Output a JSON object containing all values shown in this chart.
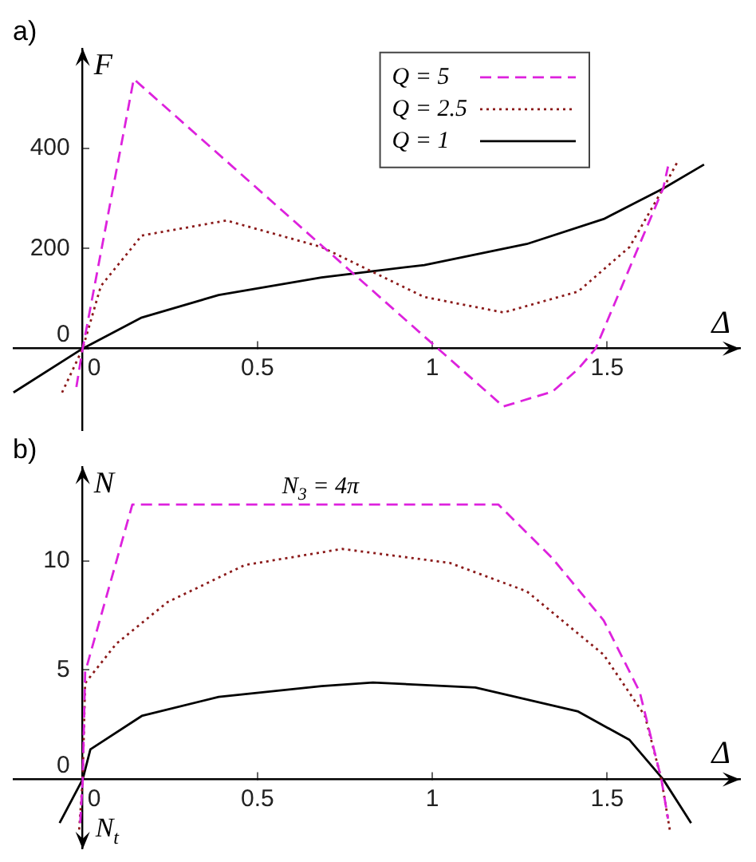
{
  "chart_data": [
    {
      "type": "line",
      "title": "a)",
      "xlabel": "Δ",
      "ylabel": "F",
      "xlim": [
        -0.2,
        1.88
      ],
      "ylim": [
        -165,
        600
      ],
      "xticks": [
        0,
        0.5,
        1,
        1.5
      ],
      "yticks": [
        0,
        200,
        400
      ],
      "grid": false,
      "legend": "top right",
      "series": [
        {
          "name": "Q = 5",
          "color": "#dd22dd",
          "line_style": "dashed",
          "x": [
            -0.018,
            0,
            0.146,
            1.203,
            1.344,
            1.417,
            1.467,
            1.66,
            1.674
          ],
          "values": [
            -77,
            0,
            539,
            -116,
            -86,
            -41,
            0,
            320,
            364
          ]
        },
        {
          "name": "Q = 2.5",
          "color": "#8b1a1a",
          "line_style": "dotted",
          "x": [
            -0.059,
            0,
            0.052,
            0.169,
            0.411,
            0.683,
            0.977,
            1.204,
            1.417,
            1.564,
            1.66,
            1.7
          ],
          "values": [
            -88,
            0,
            125,
            226,
            256,
            203,
            103,
            72,
            114,
            203,
            320,
            372
          ]
        },
        {
          "name": "Q = 1",
          "color": "#000000",
          "line_style": "solid",
          "x": [
            -0.198,
            0,
            0.169,
            0.389,
            0.683,
            0.977,
            1.27,
            1.49,
            1.66,
            1.777
          ],
          "values": [
            -88,
            0,
            62,
            107,
            142,
            167,
            209,
            259,
            320,
            368
          ]
        }
      ]
    },
    {
      "type": "line",
      "title": "b)",
      "xlabel": "Δ",
      "ylabel": "N",
      "xlim": [
        -0.2,
        1.88
      ],
      "ylim": [
        -3.2,
        14.3
      ],
      "xticks": [
        0,
        0.5,
        1,
        1.5
      ],
      "yticks": [
        0,
        5,
        10
      ],
      "grid": false,
      "annotations": [
        {
          "text": "N$_{3}$ = 4π",
          "x": 0.68,
          "y": 12.57
        },
        "N$_{t}$"
      ],
      "series": [
        {
          "color": "#dd22dd",
          "line_style": "dashed",
          "x": [
            -0.007,
            0,
            0.007,
            0.142,
            1.189,
            1.344,
            1.49,
            1.593,
            1.655,
            1.674
          ],
          "values": [
            -2,
            0,
            4.9,
            12.57,
            12.57,
            10.1,
            7.27,
            4,
            0,
            -1.8
          ]
        },
        {
          "color": "#8b1a1a",
          "line_style": "dotted",
          "x": [
            -0.01,
            0,
            0.007,
            0.096,
            0.242,
            0.463,
            0.742,
            1.05,
            1.27,
            1.49,
            1.608,
            1.655,
            1.68
          ],
          "values": [
            -2.3,
            0,
            4.4,
            6.2,
            8.1,
            9.8,
            10.54,
            9.9,
            8.6,
            5.7,
            2.9,
            0,
            -2.4
          ]
        },
        {
          "color": "#000000",
          "line_style": "solid",
          "x": [
            -0.066,
            0,
            0.022,
            0.169,
            0.389,
            0.683,
            0.83,
            1.123,
            1.417,
            1.564,
            1.66,
            1.74
          ],
          "values": [
            -2,
            0,
            1.37,
            2.9,
            3.77,
            4.26,
            4.43,
            4.2,
            3.1,
            1.8,
            0,
            -2
          ]
        }
      ]
    }
  ]
}
